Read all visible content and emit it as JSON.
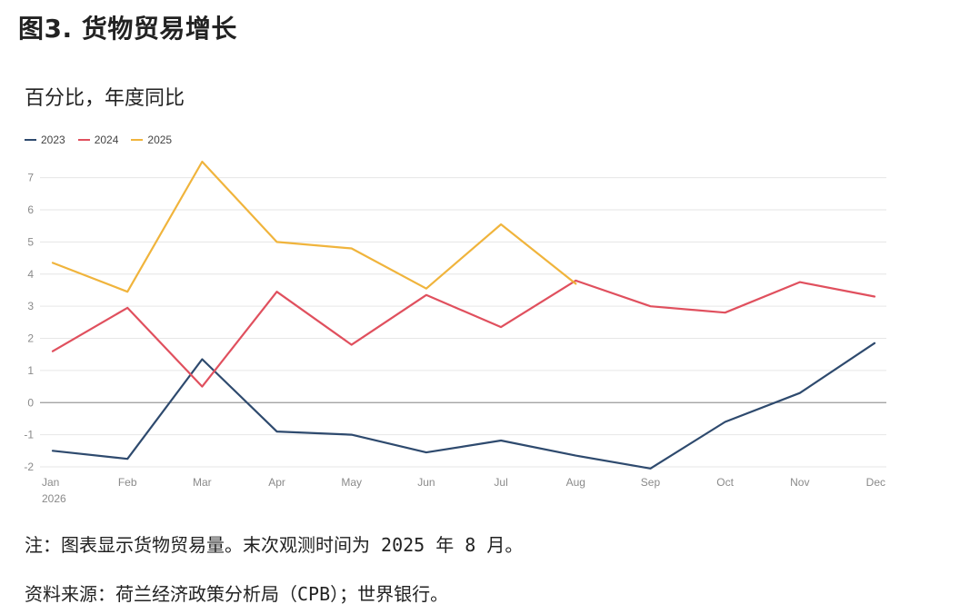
{
  "page": {
    "title": "图3. 货物贸易增长",
    "subtitle": "百分比，年度同比",
    "note": "注：图表显示货物贸易量。末次观测时间为 2025 年 8 月。",
    "source": "资料来源：荷兰经济政策分析局（CPB）；世界银行。"
  },
  "colors": {
    "2023": "#2e4a6e",
    "2024": "#e0505e",
    "2025": "#f0b43c",
    "grid": "#e6e6e6",
    "zero_line": "#9a9a9a",
    "tick_text": "#8a8a8a"
  },
  "chart_data": {
    "type": "line",
    "title": "",
    "xlabel": "",
    "ylabel": "",
    "categories": [
      "Jan",
      "Feb",
      "Mar",
      "Apr",
      "May",
      "Jun",
      "Jul",
      "Aug",
      "Sep",
      "Oct",
      "Nov",
      "Dec"
    ],
    "x_sublabel": "2026",
    "ylim": [
      -2,
      7.5
    ],
    "yticks": [
      -2,
      -1,
      0,
      1,
      2,
      3,
      4,
      5,
      6,
      7
    ],
    "grid": true,
    "legend": "top-left",
    "series": [
      {
        "name": "2023",
        "color_key": "2023",
        "values": [
          -1.5,
          -1.75,
          1.35,
          -0.9,
          -1.0,
          -1.55,
          -1.18,
          -1.65,
          -2.05,
          -0.6,
          0.3,
          1.85
        ]
      },
      {
        "name": "2024",
        "color_key": "2024",
        "values": [
          1.6,
          2.95,
          0.5,
          3.45,
          1.8,
          3.35,
          2.35,
          3.8,
          3.0,
          2.8,
          3.75,
          3.3
        ]
      },
      {
        "name": "2025",
        "color_key": "2025",
        "values": [
          4.35,
          3.45,
          7.5,
          5.0,
          4.8,
          3.55,
          5.55,
          3.7,
          null,
          null,
          null,
          null
        ]
      }
    ]
  }
}
